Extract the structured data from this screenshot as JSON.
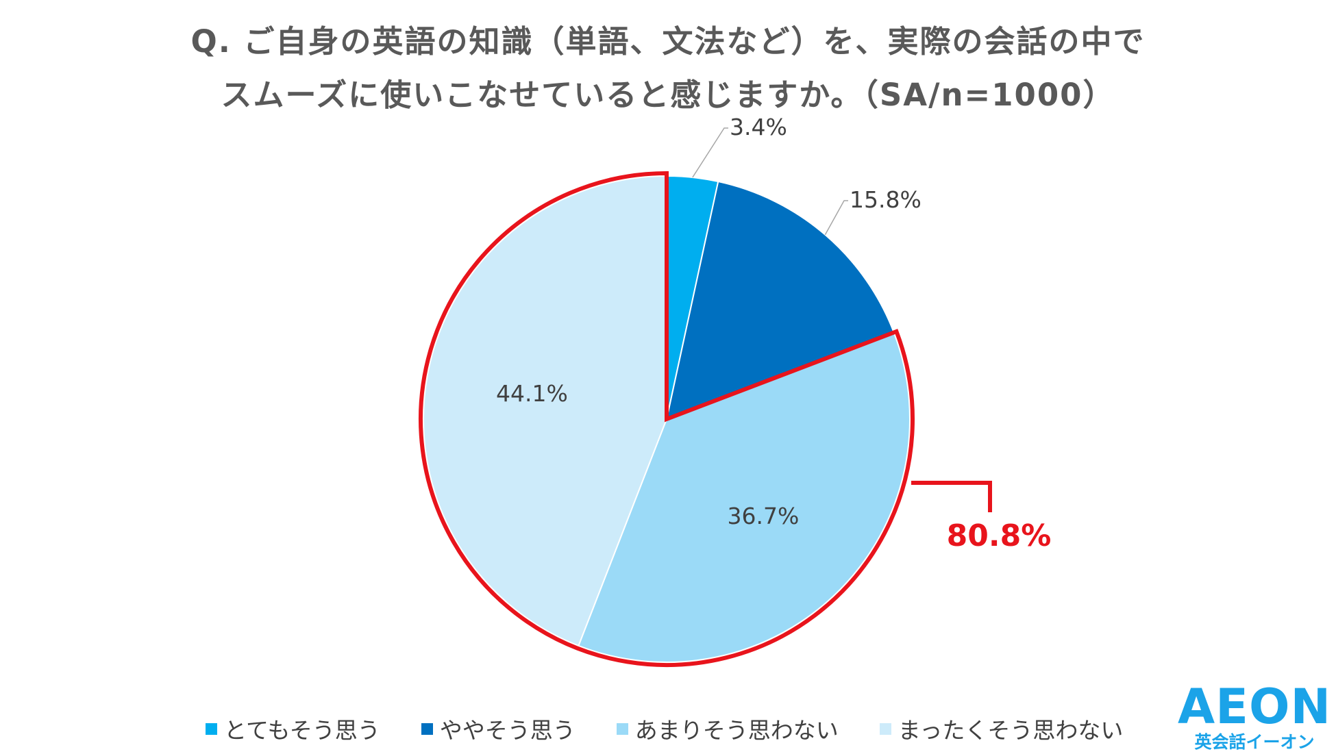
{
  "chart_data": {
    "type": "pie",
    "title_lines": [
      "Q. ご自身の英語の知識（単語、文法など）を、実際の会話の中で",
      "スムーズに使いこなせていると感じますか。（SA/n=1000）"
    ],
    "categories": [
      "とてもそう思う",
      "ややそう思う",
      "あまりそう思わない",
      "まったくそう思わない"
    ],
    "values": [
      3.4,
      15.8,
      36.7,
      44.1
    ],
    "value_labels": [
      "3.4%",
      "15.8%",
      "36.7%",
      "44.1%"
    ],
    "colors": [
      "#00aeef",
      "#0070c0",
      "#9bdaf7",
      "#cdebfa"
    ],
    "start_angle": "12 o'clock, clockwise",
    "highlight": {
      "categories": [
        "あまりそう思わない",
        "まったくそう思わない"
      ],
      "label": "80.8%",
      "color": "#e8141c"
    },
    "legend_position": "bottom"
  },
  "brand": {
    "logo_main": "AEON",
    "logo_sub": "英会話イーオン",
    "color": "#1ba3e8"
  }
}
